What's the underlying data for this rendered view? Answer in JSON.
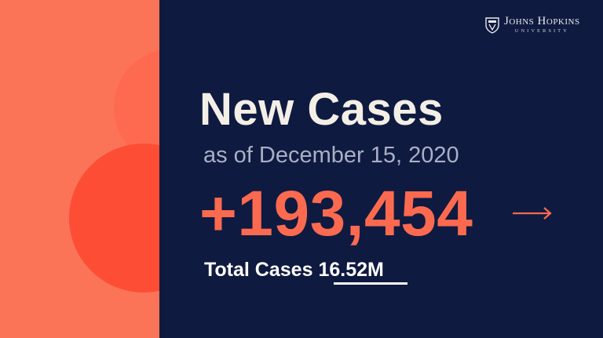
{
  "logo": {
    "name": "Johns Hopkins",
    "subtitle": "UNIVERSITY"
  },
  "slide": {
    "headline": "New Cases",
    "as_of": "as of December 15, 2020",
    "new_cases": "+193,454",
    "total_label": "Total Cases",
    "total_value": "16.52M"
  },
  "colors": {
    "navy": "#0f1a40",
    "coral": "#fb7457",
    "accent": "#fb6a4f"
  },
  "icons": {
    "arrow": "arrow-right-icon",
    "crest": "university-crest-icon"
  }
}
